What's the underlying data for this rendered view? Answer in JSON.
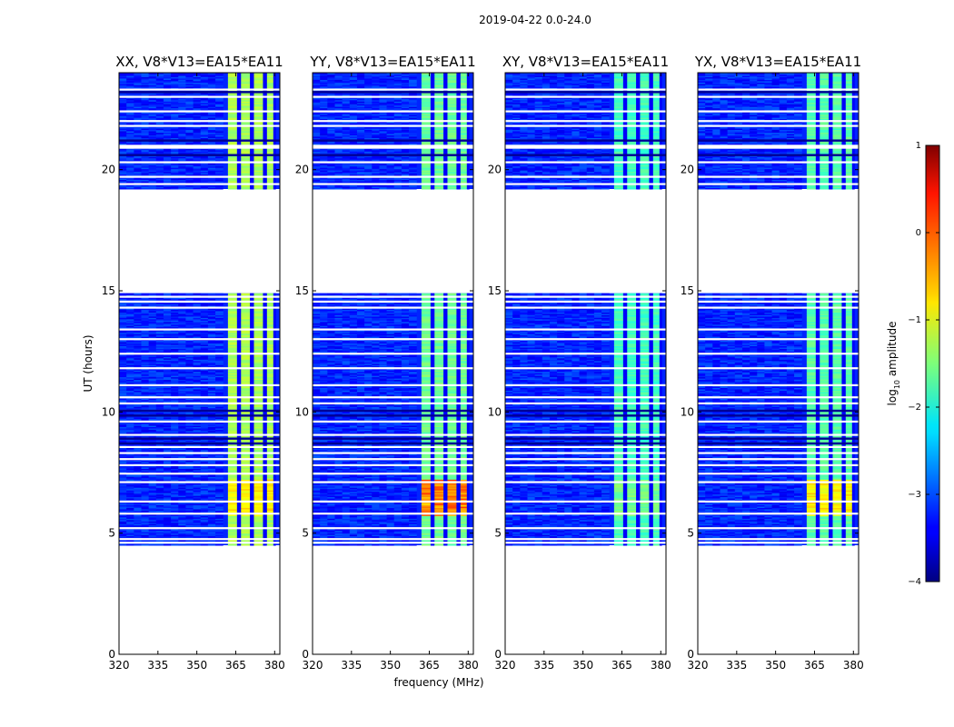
{
  "chart_data": {
    "type": "heatmap",
    "title": "2019-04-22 0.0-24.0",
    "xlabel": "frequency (MHz)",
    "ylabel": "UT (hours)",
    "xlim": [
      320,
      382
    ],
    "ylim": [
      0,
      24
    ],
    "xticks": [
      320,
      335,
      350,
      365,
      380
    ],
    "xtick_labels": [
      "320",
      "335",
      "350",
      "365",
      "380"
    ],
    "yticks": [
      0,
      5,
      10,
      15,
      20
    ],
    "ytick_labels": [
      "0",
      "5",
      "10",
      "15",
      "20"
    ],
    "colorbar": {
      "label": "log10 amplitude",
      "label_base": "log",
      "label_sub": "10",
      "label_rest": " amplitude",
      "range": [
        -4,
        1
      ],
      "ticks": [
        1,
        0,
        -1,
        -2,
        -3,
        -4
      ],
      "tick_labels": [
        "1",
        "0",
        "−1",
        "−2",
        "−3",
        "−4"
      ],
      "colormap": "jet"
    },
    "data_time_ranges": [
      [
        4.5,
        14.9
      ],
      [
        19.2,
        24.0
      ]
    ],
    "bright_band_mhz": [
      360,
      379
    ],
    "background_level": -3.2,
    "panels": [
      {
        "title": "XX, V8*V13=EA15*EA11",
        "band_level": -1.3,
        "peak_level": -0.7
      },
      {
        "title": "YY, V8*V13=EA15*EA11",
        "band_level": -1.6,
        "peak_level": 0.1
      },
      {
        "title": "XY, V8*V13=EA15*EA11",
        "band_level": -1.8,
        "peak_level": -1.5
      },
      {
        "title": "YX, V8*V13=EA15*EA11",
        "band_level": -1.7,
        "peak_level": -0.6
      }
    ]
  }
}
